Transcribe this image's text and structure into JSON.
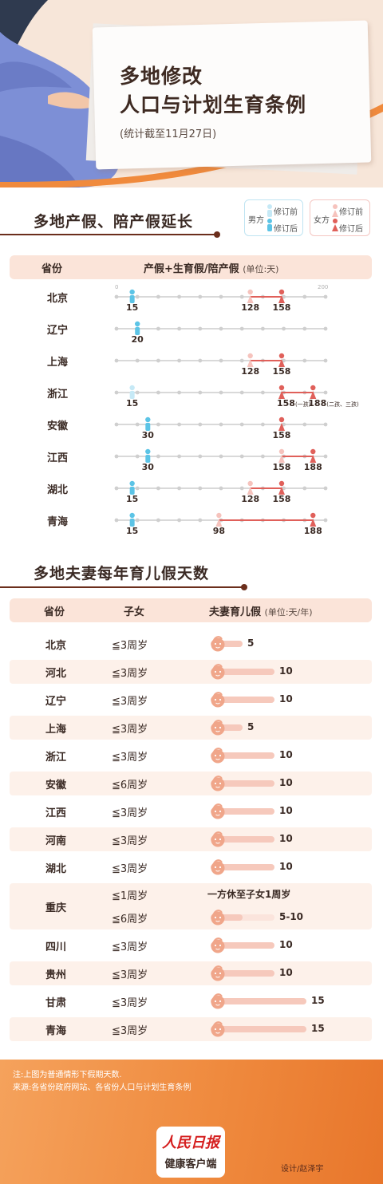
{
  "header": {
    "title_line1": "多地修改",
    "title_line2": "人口与计划生育条例",
    "subtitle": "(统计截至11月27日)"
  },
  "section1": {
    "title": "多地产假、陪产假延长",
    "legend": {
      "male": "男方",
      "female": "女方",
      "before": "修订前",
      "after": "修订后"
    },
    "table_header": {
      "province": "省份",
      "measure": "产假+生育假/陪产假",
      "unit": "(单位:天)"
    },
    "axis_min_label": "0",
    "axis_max_label": "200"
  },
  "section2": {
    "title": "多地夫妻每年育儿假天数",
    "table_header": {
      "province": "省份",
      "children": "子女",
      "measure": "夫妻育儿假",
      "unit": "(单位:天/年)"
    }
  },
  "chart_data": [
    {
      "type": "scatter",
      "title": "多地产假、陪产假延长",
      "ylabel": "产假+生育假/陪产假",
      "unit": "(单位:天)",
      "xlim": [
        0,
        200
      ],
      "colors": {
        "male_before": "#c6e9f6",
        "male_after": "#5cc4e6",
        "female_before": "#f6c3bd",
        "female_after": "#e0605a"
      },
      "rows": [
        {
          "province": "北京",
          "male_before": null,
          "male_after": 15,
          "female_before": 128,
          "female_after": [
            158
          ],
          "male_label": "15",
          "female_before_label": "128",
          "female_after_labels": [
            "158"
          ]
        },
        {
          "province": "辽宁",
          "male_before": null,
          "male_after": 20,
          "female_before": null,
          "female_after": [],
          "male_label": "20",
          "female_before_label": "",
          "female_after_labels": []
        },
        {
          "province": "上海",
          "male_before": null,
          "male_after": null,
          "female_before": 128,
          "female_after": [
            158
          ],
          "male_label": "",
          "female_before_label": "128",
          "female_after_labels": [
            "158"
          ]
        },
        {
          "province": "浙江",
          "male_before": 15,
          "male_after": null,
          "female_before": null,
          "female_after": [
            158,
            188
          ],
          "male_label": "15",
          "female_before_label": "",
          "female_after_labels": [
            "158",
            "188"
          ],
          "female_after_notes": [
            "(一孩)",
            "(二孩、三孩)"
          ]
        },
        {
          "province": "安徽",
          "male_before": null,
          "male_after": 30,
          "female_before": null,
          "female_after": [
            158
          ],
          "male_label": "30",
          "female_before_label": "",
          "female_after_labels": [
            "158"
          ]
        },
        {
          "province": "江西",
          "male_before": null,
          "male_after": 30,
          "female_before": 158,
          "female_after": [
            188
          ],
          "male_label": "30",
          "female_before_label": "158",
          "female_after_labels": [
            "188"
          ]
        },
        {
          "province": "湖北",
          "male_before": null,
          "male_after": 15,
          "female_before": 128,
          "female_after": [
            158
          ],
          "male_label": "15",
          "female_before_label": "128",
          "female_after_labels": [
            "158"
          ]
        },
        {
          "province": "青海",
          "male_before": null,
          "male_after": 15,
          "female_before": 98,
          "female_after": [
            188
          ],
          "male_label": "15",
          "female_before_label": "98",
          "female_after_labels": [
            "188"
          ]
        }
      ]
    },
    {
      "type": "bar",
      "title": "多地夫妻每年育儿假天数",
      "ylabel": "夫妻育儿假",
      "unit": "(单位:天/年)",
      "xlim": [
        0,
        15
      ],
      "colors": {
        "bar": "#f6c9bc",
        "bar_light": "#fbe4dc",
        "face": "#f0a68a"
      },
      "rows": [
        {
          "province": "北京",
          "age": "≦3周岁",
          "value": 5,
          "label": "5"
        },
        {
          "province": "河北",
          "age": "≦3周岁",
          "value": 10,
          "label": "10"
        },
        {
          "province": "辽宁",
          "age": "≦3周岁",
          "value": 10,
          "label": "10"
        },
        {
          "province": "上海",
          "age": "≦3周岁",
          "value": 5,
          "label": "5"
        },
        {
          "province": "浙江",
          "age": "≦3周岁",
          "value": 10,
          "label": "10"
        },
        {
          "province": "安徽",
          "age": "≦6周岁",
          "value": 10,
          "label": "10"
        },
        {
          "province": "江西",
          "age": "≦3周岁",
          "value": 10,
          "label": "10"
        },
        {
          "province": "河南",
          "age": "≦3周岁",
          "value": 10,
          "label": "10"
        },
        {
          "province": "湖北",
          "age": "≦3周岁",
          "value": 10,
          "label": "10"
        },
        {
          "province": "重庆",
          "age": "≦1周岁",
          "value": null,
          "label": "",
          "note": "一方休至子女1周岁",
          "age2": "≦6周岁",
          "value2": [
            5,
            10
          ],
          "label2": "5-10"
        },
        {
          "province": "四川",
          "age": "≦3周岁",
          "value": 10,
          "label": "10"
        },
        {
          "province": "贵州",
          "age": "≦3周岁",
          "value": 10,
          "label": "10"
        },
        {
          "province": "甘肃",
          "age": "≦3周岁",
          "value": 15,
          "label": "15"
        },
        {
          "province": "青海",
          "age": "≦3周岁",
          "value": 15,
          "label": "15"
        }
      ]
    }
  ],
  "footer": {
    "note": "注:上图为普通情形下假期天数.",
    "source": "来源:各省份政府网站、各省份人口与计划生育条例",
    "logo_main": "人民日报",
    "logo_sub": "健康客户端",
    "designer": "设计/赵泽宇"
  }
}
